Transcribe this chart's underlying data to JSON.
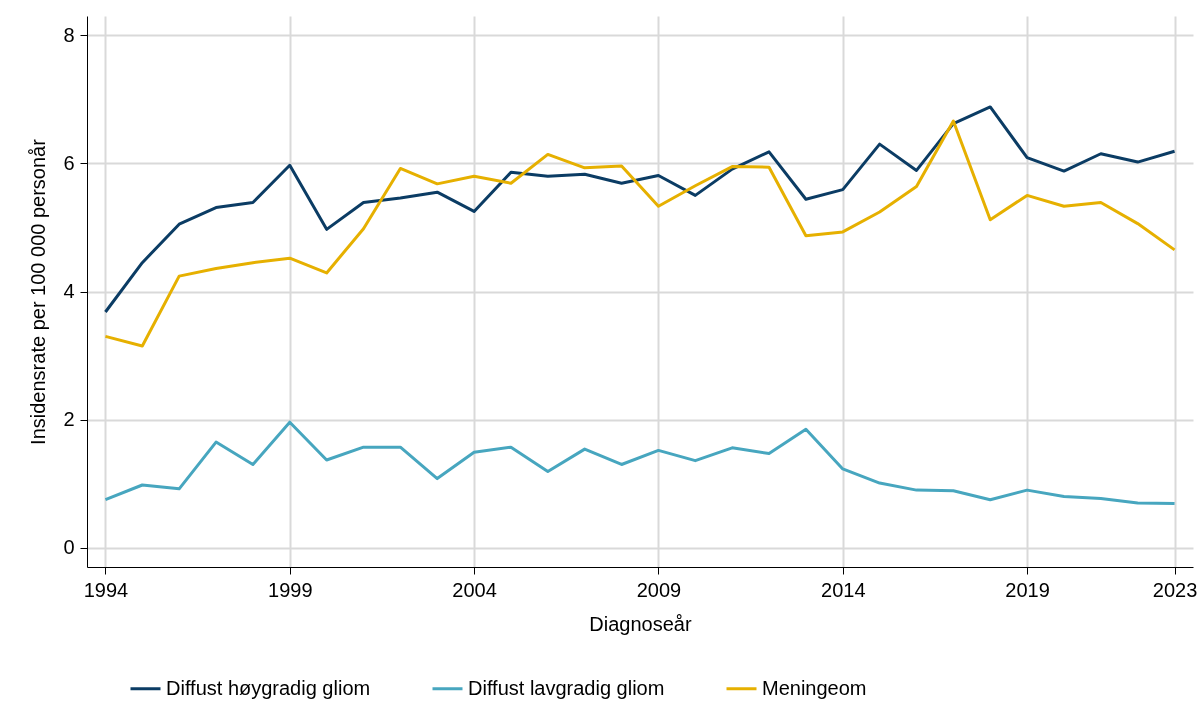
{
  "chart_data": {
    "type": "line",
    "xlabel": "Diagnoseår",
    "ylabel": "Insidensrate per 100 000 personår",
    "x": [
      1994,
      1995,
      1996,
      1997,
      1998,
      1999,
      2000,
      2001,
      2002,
      2003,
      2004,
      2005,
      2006,
      2007,
      2008,
      2009,
      2010,
      2011,
      2012,
      2013,
      2014,
      2015,
      2016,
      2017,
      2018,
      2019,
      2020,
      2021,
      2022,
      2023
    ],
    "series": [
      {
        "name": "Diffust høygradig gliom",
        "color": "#0b3c64",
        "values": [
          3.68,
          4.45,
          5.05,
          5.31,
          5.39,
          5.97,
          4.97,
          5.39,
          5.46,
          5.55,
          5.25,
          5.86,
          5.8,
          5.83,
          5.69,
          5.81,
          5.5,
          5.91,
          6.18,
          5.44,
          5.59,
          6.3,
          5.89,
          6.62,
          6.88,
          6.09,
          5.88,
          6.15,
          6.02,
          6.19
        ]
      },
      {
        "name": "Diffust lavgradig gliom",
        "color": "#47a6bf",
        "values": [
          0.75,
          0.98,
          0.92,
          1.65,
          1.3,
          1.96,
          1.37,
          1.57,
          1.57,
          1.08,
          1.49,
          1.57,
          1.19,
          1.54,
          1.3,
          1.52,
          1.36,
          1.56,
          1.47,
          1.85,
          1.23,
          1.01,
          0.9,
          0.89,
          0.75,
          0.9,
          0.8,
          0.77,
          0.7,
          0.69
        ]
      },
      {
        "name": "Meningeom",
        "color": "#e6b000",
        "values": [
          3.3,
          3.15,
          4.24,
          4.36,
          4.45,
          4.52,
          4.29,
          4.98,
          5.92,
          5.68,
          5.8,
          5.69,
          6.14,
          5.93,
          5.96,
          5.33,
          5.65,
          5.95,
          5.94,
          4.87,
          4.93,
          5.24,
          5.64,
          6.66,
          5.12,
          5.5,
          5.33,
          5.39,
          5.06,
          4.65
        ]
      }
    ],
    "xlim": [
      1993.5,
      2023.5
    ],
    "xticks": [
      1994,
      1999,
      2004,
      2009,
      2014,
      2019,
      2023
    ],
    "ylim": [
      -0.3,
      8.3
    ],
    "yticks": [
      0,
      2,
      4,
      6,
      8
    ],
    "grid": true,
    "legend": "bottom",
    "line_style": "solid"
  }
}
